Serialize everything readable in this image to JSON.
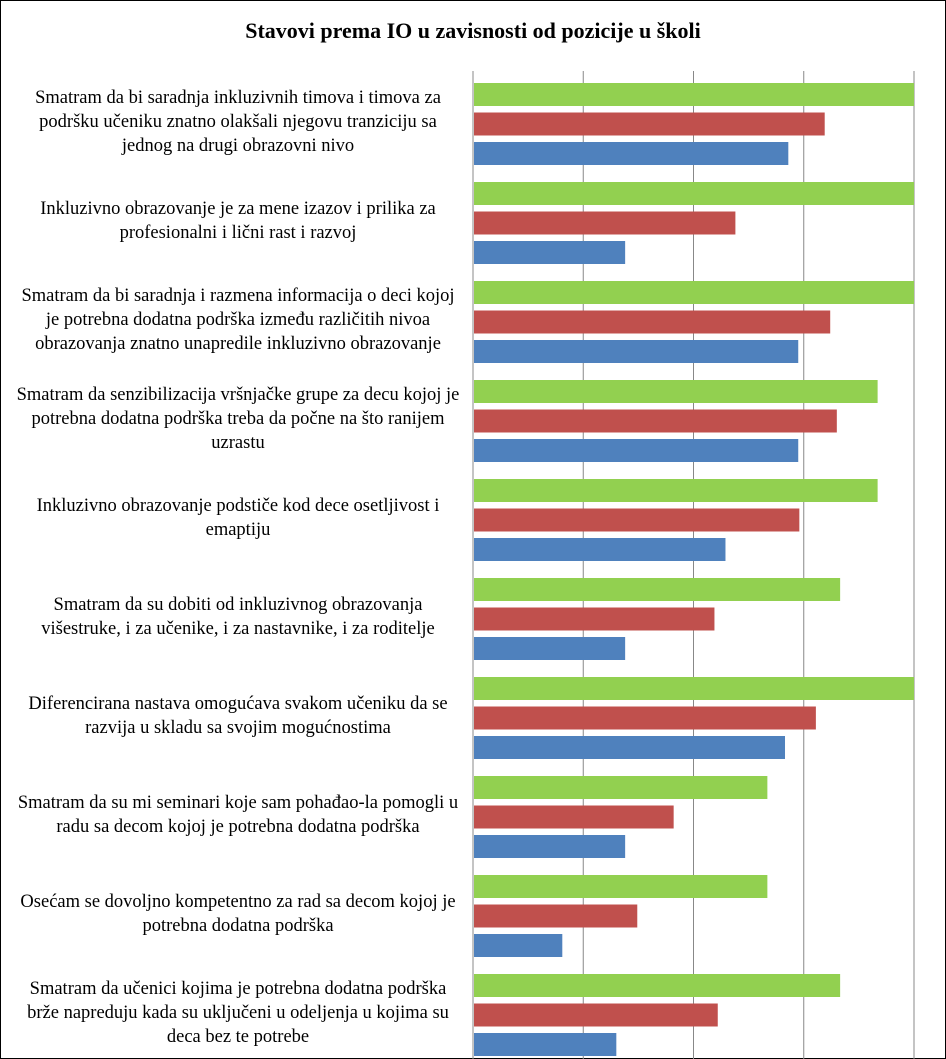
{
  "chart_data": {
    "type": "bar",
    "orientation": "horizontal",
    "title": "Stavovi prema IO u zavisnosti od pozicije u školi",
    "categories": [
      "Smatram da bi saradnja inkluzivnih timova i timova za podršku učeniku znatno olakšali njegovu tranziciju sa jednog na drugi obrazovni nivo",
      "Inkluzivno obrazovanje je za mene izazov i prilika za profesionalni i lični rast i razvoj",
      "Smatram da bi saradnja i razmena informacija o deci kojoj je potrebna dodatna podrška između različitih nivoa obrazovanja znatno unapredile inkluzivno obrazovanje",
      "Smatram da senzibilizacija vršnjačke grupe za decu kojoj je potrebna dodatna podrška treba da počne na što ranijem uzrastu",
      "Inkluzivno obrazovanje podstiče kod dece osetljivost i emaptiju",
      "Smatram da su dobiti od inkluzivnog obrazovanja višestruke, i za učenike, i za nastavnike, i za roditelje",
      "Diferencirana nastava omogućava svakom učeniku da se razvija u skladu sa svojim mogućnostima",
      "Smatram da su mi seminari koje sam pohađao-la pomogli u radu sa decom kojoj je potrebna dodatna podrška",
      "Osećam se dovoljno kompetentno za rad sa decom kojoj je potrebna dodatna podrška",
      "Smatram da učenici kojima je potrebna dodatna podrška brže napreduju kada su uključeni u odeljenja u kojima su deca bez te potrebe"
    ],
    "series": [
      {
        "color": "#92d050",
        "values": [
          4.0,
          4.0,
          4.0,
          3.67,
          3.67,
          3.33,
          4.0,
          2.67,
          2.67,
          3.33
        ]
      },
      {
        "color": "#c0504d",
        "values": [
          3.19,
          2.38,
          3.24,
          3.3,
          2.96,
          2.19,
          3.11,
          1.82,
          1.49,
          2.22
        ]
      },
      {
        "color": "#4f81bd",
        "values": [
          2.86,
          1.38,
          2.95,
          2.95,
          2.29,
          1.38,
          2.83,
          1.38,
          0.81,
          1.3
        ]
      }
    ],
    "xlim": [
      0,
      4
    ],
    "grid": true,
    "legend": "none"
  }
}
